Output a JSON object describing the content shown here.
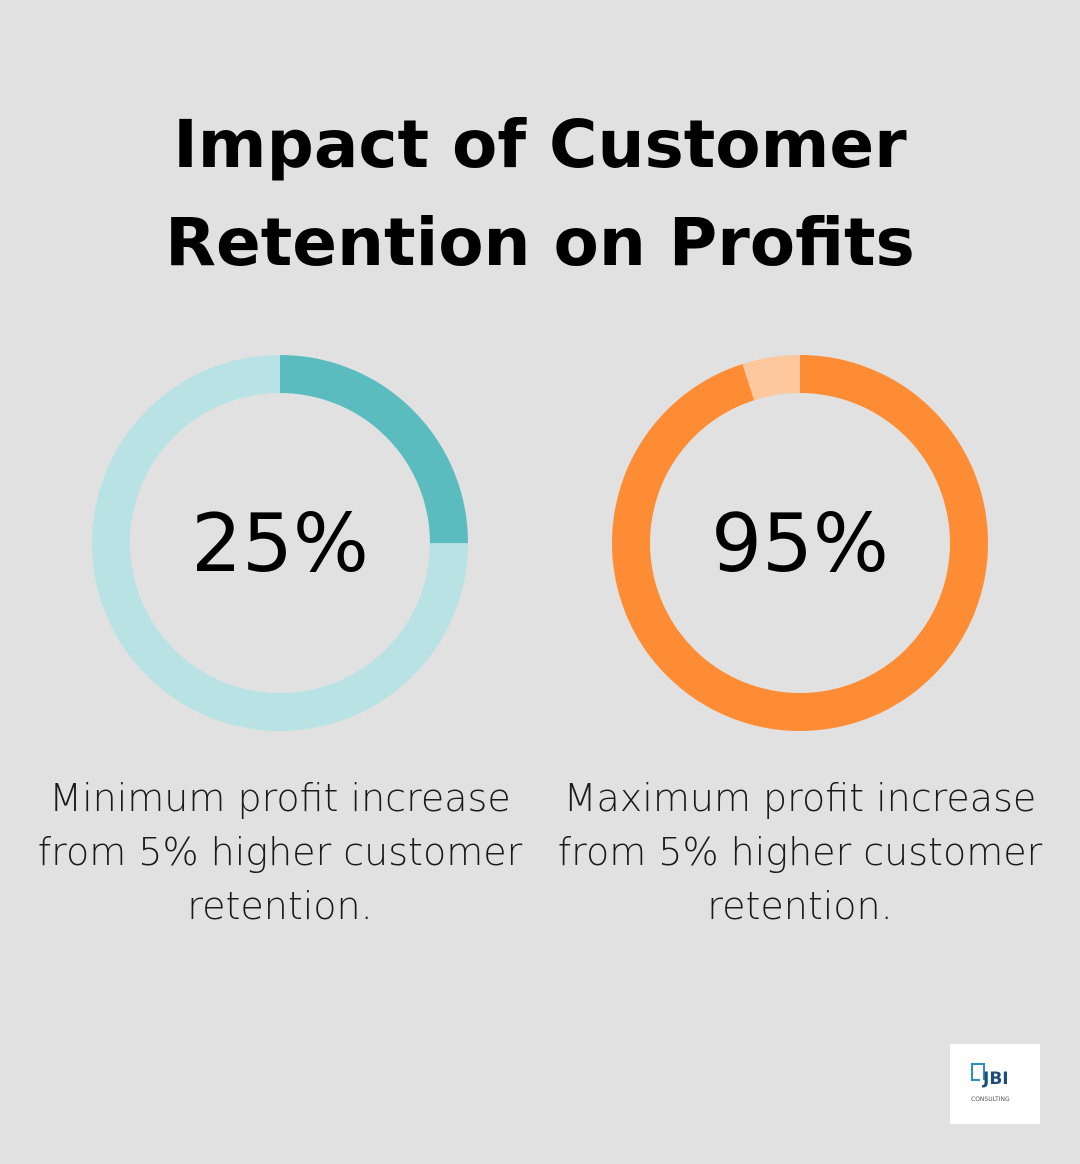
{
  "title": "Impact of Customer Retention on Profits",
  "chart_data": [
    {
      "type": "pie",
      "variant": "donut",
      "label": "25%",
      "value": 25,
      "total": 100,
      "description": "Minimum profit increase from 5% higher customer retention.",
      "colors": {
        "value": "#5bbcc0",
        "remainder": "#b9e2e4"
      }
    },
    {
      "type": "pie",
      "variant": "donut",
      "label": "95%",
      "value": 95,
      "total": 100,
      "description": "Maximum profit increase from 5% higher customer retention.",
      "colors": {
        "value": "#fd8c34",
        "remainder": "#fec89e"
      }
    }
  ],
  "logo": {
    "text": "JBI",
    "subtext": "CONSULTING"
  }
}
